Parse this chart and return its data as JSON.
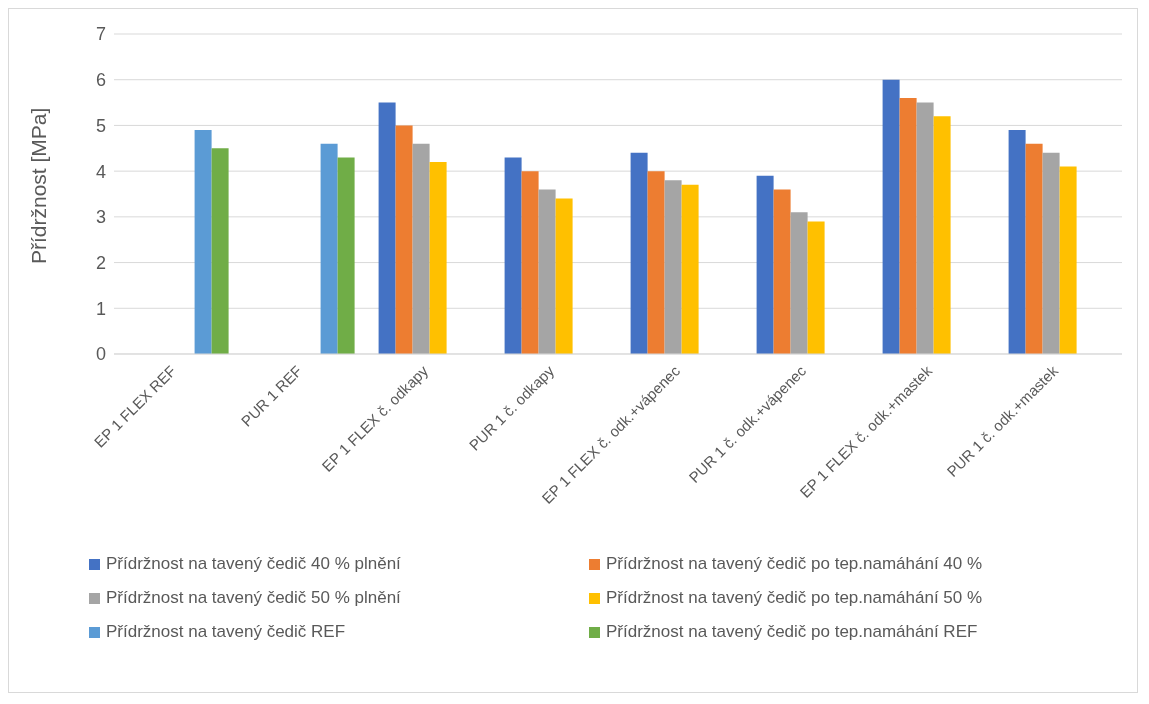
{
  "chart_data": {
    "type": "bar",
    "ylabel": "Přídržnost [MPa]",
    "categories": [
      "EP 1 FLEX REF",
      "PUR 1 REF",
      "EP 1 FLEX č. odkapy",
      "PUR 1 č. odkapy",
      "EP 1 FLEX č. odk.+vápenec",
      "PUR 1 č. odk.+vápenec",
      "EP 1 FLEX č. odk.+mastek",
      "PUR 1 č. odk.+mastek"
    ],
    "series": [
      {
        "name": "Přídržnost na tavený čedič 40 % plnění",
        "color": "#4472c4",
        "values": [
          null,
          null,
          5.5,
          4.3,
          4.4,
          3.9,
          6.0,
          4.9
        ]
      },
      {
        "name": "Přídržnost na tavený čedič po tep.namáhání 40 %",
        "color": "#ed7d31",
        "values": [
          null,
          null,
          5.0,
          4.0,
          4.0,
          3.6,
          5.6,
          4.6
        ]
      },
      {
        "name": "Přídržnost na tavený čedič 50 % plnění",
        "color": "#a5a5a5",
        "values": [
          null,
          null,
          4.6,
          3.6,
          3.8,
          3.1,
          5.5,
          4.4
        ]
      },
      {
        "name": "Přídržnost na tavený čedič po tep.namáhání 50 %",
        "color": "#ffc000",
        "values": [
          null,
          null,
          4.2,
          3.4,
          3.7,
          2.9,
          5.2,
          4.1
        ]
      },
      {
        "name": "Přídržnost na tavený čedič REF",
        "color": "#5b9bd5",
        "values": [
          4.9,
          4.6,
          null,
          null,
          null,
          null,
          null,
          null
        ]
      },
      {
        "name": "Přídržnost na tavený čedič po tep.namáhání REF",
        "color": "#70ad47",
        "values": [
          4.5,
          4.3,
          null,
          null,
          null,
          null,
          null,
          null
        ]
      }
    ],
    "ylim": [
      0,
      7
    ],
    "yticks": [
      0,
      1,
      2,
      3,
      4,
      5,
      6,
      7
    ],
    "grid": "y",
    "legend": "bottom"
  }
}
